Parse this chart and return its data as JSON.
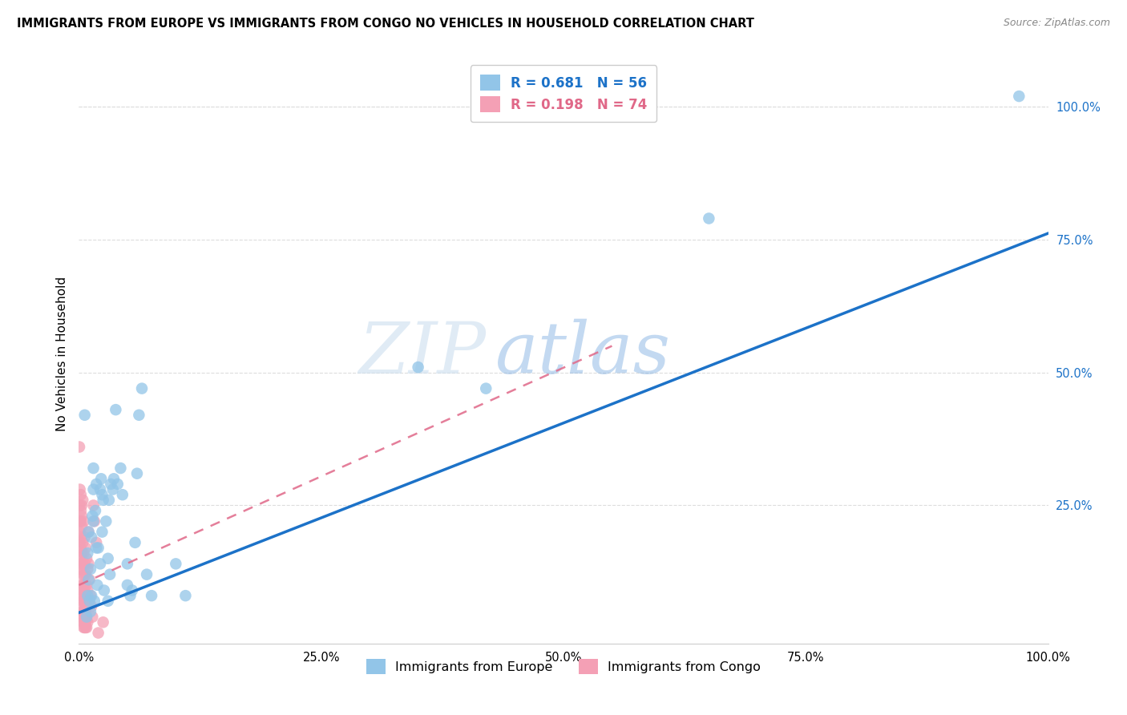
{
  "title": "IMMIGRANTS FROM EUROPE VS IMMIGRANTS FROM CONGO NO VEHICLES IN HOUSEHOLD CORRELATION CHART",
  "source": "Source: ZipAtlas.com",
  "ylabel": "No Vehicles in Household",
  "xlim": [
    0,
    1.0
  ],
  "ylim": [
    -0.01,
    1.08
  ],
  "xtick_labels": [
    "0.0%",
    "25.0%",
    "50.0%",
    "75.0%",
    "100.0%"
  ],
  "xtick_vals": [
    0,
    0.25,
    0.5,
    0.75,
    1.0
  ],
  "ytick_labels_right": [
    "100.0%",
    "75.0%",
    "50.0%",
    "25.0%"
  ],
  "ytick_vals_right": [
    1.0,
    0.75,
    0.5,
    0.25
  ],
  "europe_color": "#92C5E8",
  "congo_color": "#F4A0B5",
  "trendline_europe_color": "#1C72C8",
  "trendline_congo_color": "#E06888",
  "background_color": "#FFFFFF",
  "grid_color": "#DDDDDD",
  "europe_R": 0.681,
  "europe_N": 56,
  "congo_R": 0.198,
  "congo_N": 74,
  "trendline_europe": [
    0.0,
    0.048,
    1.0,
    0.762
  ],
  "trendline_congo": [
    0.0,
    0.1,
    0.55,
    0.55
  ],
  "europe_points": [
    [
      0.006,
      0.42
    ],
    [
      0.008,
      0.04
    ],
    [
      0.009,
      0.16
    ],
    [
      0.009,
      0.08
    ],
    [
      0.01,
      0.2
    ],
    [
      0.01,
      0.11
    ],
    [
      0.011,
      0.07
    ],
    [
      0.012,
      0.05
    ],
    [
      0.012,
      0.13
    ],
    [
      0.013,
      0.19
    ],
    [
      0.013,
      0.08
    ],
    [
      0.014,
      0.23
    ],
    [
      0.015,
      0.28
    ],
    [
      0.015,
      0.32
    ],
    [
      0.015,
      0.22
    ],
    [
      0.016,
      0.07
    ],
    [
      0.017,
      0.24
    ],
    [
      0.018,
      0.29
    ],
    [
      0.018,
      0.17
    ],
    [
      0.019,
      0.1
    ],
    [
      0.02,
      0.17
    ],
    [
      0.022,
      0.28
    ],
    [
      0.022,
      0.14
    ],
    [
      0.023,
      0.3
    ],
    [
      0.024,
      0.27
    ],
    [
      0.024,
      0.2
    ],
    [
      0.025,
      0.26
    ],
    [
      0.026,
      0.09
    ],
    [
      0.028,
      0.22
    ],
    [
      0.03,
      0.15
    ],
    [
      0.03,
      0.07
    ],
    [
      0.031,
      0.26
    ],
    [
      0.032,
      0.12
    ],
    [
      0.033,
      0.29
    ],
    [
      0.035,
      0.28
    ],
    [
      0.036,
      0.3
    ],
    [
      0.038,
      0.43
    ],
    [
      0.04,
      0.29
    ],
    [
      0.043,
      0.32
    ],
    [
      0.045,
      0.27
    ],
    [
      0.05,
      0.14
    ],
    [
      0.05,
      0.1
    ],
    [
      0.053,
      0.08
    ],
    [
      0.055,
      0.09
    ],
    [
      0.058,
      0.18
    ],
    [
      0.06,
      0.31
    ],
    [
      0.062,
      0.42
    ],
    [
      0.065,
      0.47
    ],
    [
      0.07,
      0.12
    ],
    [
      0.075,
      0.08
    ],
    [
      0.1,
      0.14
    ],
    [
      0.11,
      0.08
    ],
    [
      0.35,
      0.51
    ],
    [
      0.42,
      0.47
    ],
    [
      0.65,
      0.79
    ],
    [
      0.97,
      1.02
    ]
  ],
  "congo_points": [
    [
      0.0005,
      0.36
    ],
    [
      0.001,
      0.28
    ],
    [
      0.001,
      0.25
    ],
    [
      0.001,
      0.2
    ],
    [
      0.001,
      0.18
    ],
    [
      0.001,
      0.15
    ],
    [
      0.001,
      0.14
    ],
    [
      0.001,
      0.22
    ],
    [
      0.002,
      0.27
    ],
    [
      0.002,
      0.24
    ],
    [
      0.002,
      0.17
    ],
    [
      0.002,
      0.13
    ],
    [
      0.002,
      0.1
    ],
    [
      0.002,
      0.08
    ],
    [
      0.002,
      0.22
    ],
    [
      0.002,
      0.19
    ],
    [
      0.003,
      0.23
    ],
    [
      0.003,
      0.21
    ],
    [
      0.003,
      0.16
    ],
    [
      0.003,
      0.12
    ],
    [
      0.003,
      0.09
    ],
    [
      0.003,
      0.07
    ],
    [
      0.003,
      0.05
    ],
    [
      0.003,
      0.04
    ],
    [
      0.003,
      0.25
    ],
    [
      0.004,
      0.26
    ],
    [
      0.004,
      0.18
    ],
    [
      0.004,
      0.14
    ],
    [
      0.004,
      0.1
    ],
    [
      0.004,
      0.08
    ],
    [
      0.004,
      0.06
    ],
    [
      0.004,
      0.04
    ],
    [
      0.004,
      0.03
    ],
    [
      0.005,
      0.22
    ],
    [
      0.005,
      0.16
    ],
    [
      0.005,
      0.12
    ],
    [
      0.005,
      0.09
    ],
    [
      0.005,
      0.07
    ],
    [
      0.005,
      0.05
    ],
    [
      0.005,
      0.03
    ],
    [
      0.005,
      0.02
    ],
    [
      0.006,
      0.19
    ],
    [
      0.006,
      0.14
    ],
    [
      0.006,
      0.1
    ],
    [
      0.006,
      0.07
    ],
    [
      0.006,
      0.05
    ],
    [
      0.006,
      0.03
    ],
    [
      0.006,
      0.02
    ],
    [
      0.007,
      0.17
    ],
    [
      0.007,
      0.12
    ],
    [
      0.007,
      0.08
    ],
    [
      0.007,
      0.05
    ],
    [
      0.007,
      0.03
    ],
    [
      0.007,
      0.02
    ],
    [
      0.008,
      0.15
    ],
    [
      0.008,
      0.1
    ],
    [
      0.008,
      0.07
    ],
    [
      0.008,
      0.04
    ],
    [
      0.008,
      0.02
    ],
    [
      0.009,
      0.13
    ],
    [
      0.009,
      0.09
    ],
    [
      0.009,
      0.06
    ],
    [
      0.009,
      0.03
    ],
    [
      0.01,
      0.2
    ],
    [
      0.01,
      0.14
    ],
    [
      0.011,
      0.11
    ],
    [
      0.012,
      0.08
    ],
    [
      0.013,
      0.06
    ],
    [
      0.014,
      0.04
    ],
    [
      0.015,
      0.25
    ],
    [
      0.016,
      0.22
    ],
    [
      0.018,
      0.18
    ],
    [
      0.02,
      0.01
    ],
    [
      0.025,
      0.03
    ]
  ]
}
